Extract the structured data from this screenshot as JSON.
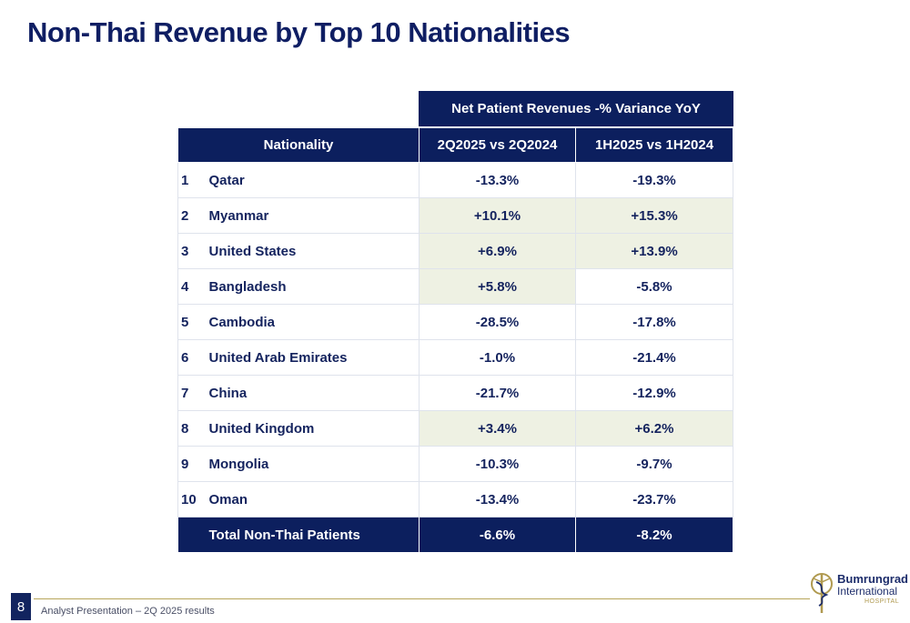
{
  "title": "Non-Thai Revenue by Top 10 Nationalities",
  "table": {
    "super_header": "Net Patient Revenues -% Variance YoY",
    "col_nationality": "Nationality",
    "col_a": "2Q2025 vs 2Q2024",
    "col_b": "1H2025 vs 1H2024",
    "rows": [
      {
        "rank": "1",
        "name": "Qatar",
        "a": "-13.3%",
        "b": "-19.3%"
      },
      {
        "rank": "2",
        "name": "Myanmar",
        "a": "+10.1%",
        "b": "+15.3%"
      },
      {
        "rank": "3",
        "name": "United States",
        "a": "+6.9%",
        "b": "+13.9%"
      },
      {
        "rank": "4",
        "name": "Bangladesh",
        "a": "+5.8%",
        "b": "-5.8%"
      },
      {
        "rank": "5",
        "name": "Cambodia",
        "a": "-28.5%",
        "b": "-17.8%"
      },
      {
        "rank": "6",
        "name": "United Arab Emirates",
        "a": "-1.0%",
        "b": "-21.4%"
      },
      {
        "rank": "7",
        "name": "China",
        "a": "-21.7%",
        "b": "-12.9%"
      },
      {
        "rank": "8",
        "name": "United Kingdom",
        "a": "+3.4%",
        "b": "+6.2%"
      },
      {
        "rank": "9",
        "name": "Mongolia",
        "a": "-10.3%",
        "b": "-9.7%"
      },
      {
        "rank": "10",
        "name": "Oman",
        "a": "-13.4%",
        "b": "-23.7%"
      }
    ],
    "total": {
      "name": "Total Non-Thai Patients",
      "a": "-6.6%",
      "b": "-8.2%"
    }
  },
  "footer": {
    "page_number": "8",
    "text": "Analyst Presentation – 2Q 2025 results"
  },
  "logo": {
    "line1": "Bumrungrad",
    "line2": "International",
    "line3": "HOSPITAL"
  },
  "colors": {
    "navy": "#0c1f5e",
    "positive_fill": "#eef1e3",
    "gold": "#b8a55a"
  }
}
